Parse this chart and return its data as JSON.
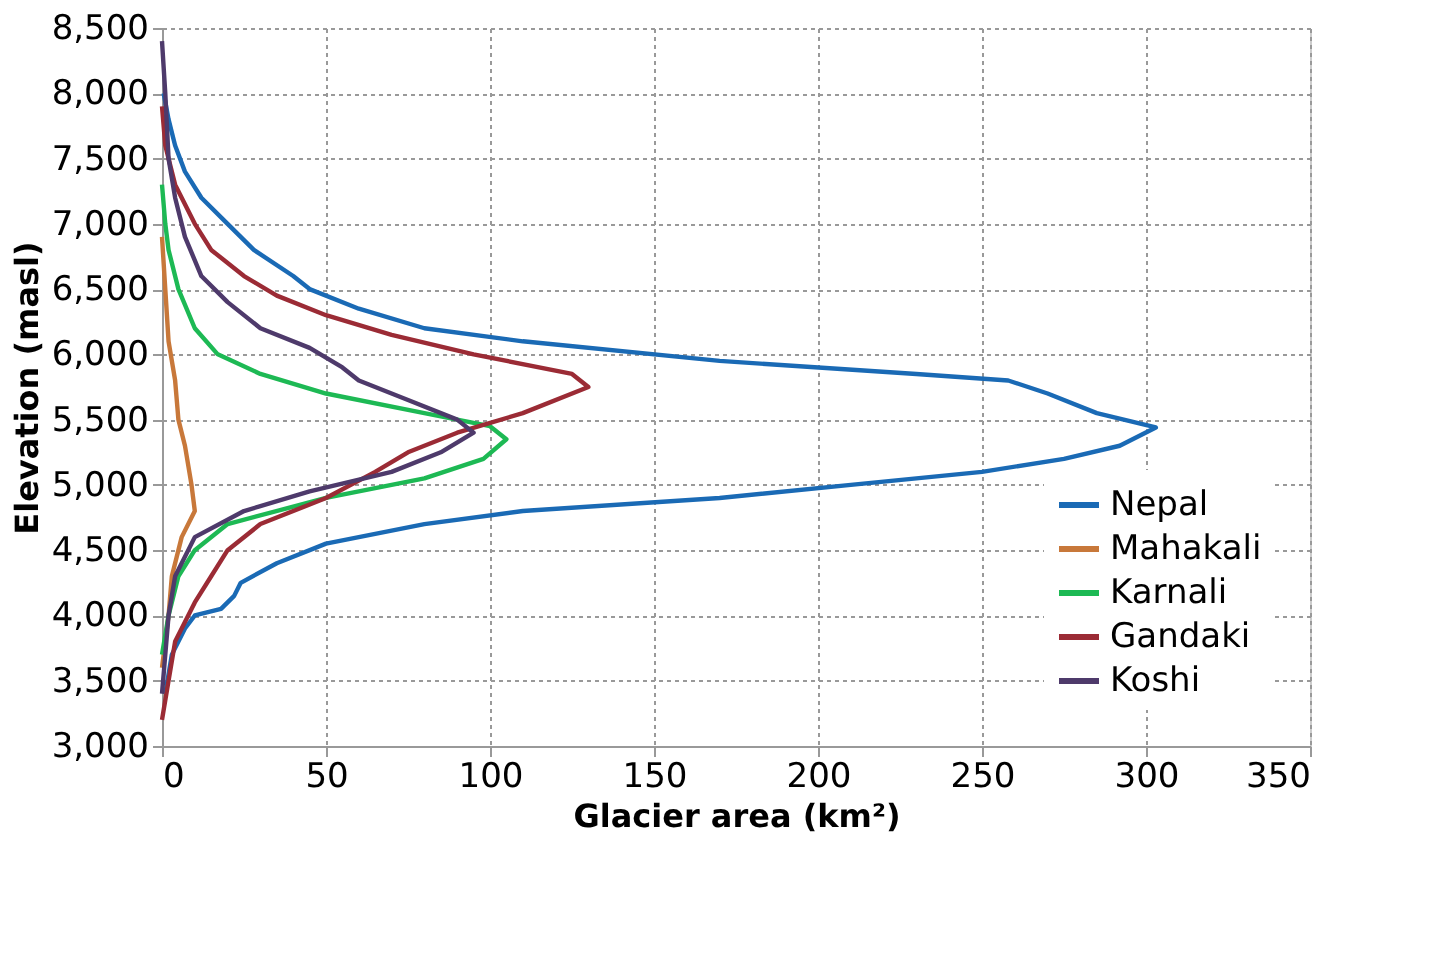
{
  "chart_data": {
    "type": "line",
    "xlabel": "Glacier area (km²)",
    "ylabel": "Elevation (masl)",
    "xlim": [
      0,
      350
    ],
    "xticks": [
      0,
      50,
      100,
      150,
      200,
      250,
      300,
      350
    ],
    "ylim": [
      3000,
      8500
    ],
    "yticks": [
      {
        "value": 3000,
        "label": "3,000"
      },
      {
        "value": 3500,
        "label": "3,500"
      },
      {
        "value": 4000,
        "label": "4,000"
      },
      {
        "value": 4500,
        "label": "4,500"
      },
      {
        "value": 5000,
        "label": "5,000"
      },
      {
        "value": 5500,
        "label": "5,500"
      },
      {
        "value": 6000,
        "label": "6,000"
      },
      {
        "value": 6500,
        "label": "6,500"
      },
      {
        "value": 7000,
        "label": "7,000"
      },
      {
        "value": 7500,
        "label": "7,500"
      },
      {
        "value": 8000,
        "label": "8,000"
      },
      {
        "value": 8500,
        "label": "8,500"
      }
    ],
    "grid": true,
    "legend": "bottom right",
    "marker": "none",
    "series": [
      {
        "name": "Nepal",
        "color": "#1a6ab5",
        "x": [
          1,
          3,
          7,
          10,
          18,
          22,
          24,
          35,
          50,
          80,
          110,
          170,
          210,
          250,
          275,
          292,
          303,
          285,
          270,
          258,
          230,
          170,
          110,
          80,
          60,
          45,
          40,
          28,
          20,
          12,
          7,
          4,
          2,
          0.5
        ],
        "values": [
          3400,
          3700,
          3900,
          4000,
          4050,
          4150,
          4250,
          4400,
          4550,
          4700,
          4800,
          4900,
          5000,
          5100,
          5200,
          5300,
          5440,
          5550,
          5700,
          5800,
          5850,
          5950,
          6100,
          6200,
          6350,
          6500,
          6600,
          6800,
          7000,
          7200,
          7400,
          7600,
          7800,
          8000
        ]
      },
      {
        "name": "Mahakali",
        "color": "#c8783a",
        "x": [
          0,
          2,
          3,
          6,
          10,
          9,
          7,
          5,
          4,
          2,
          1,
          0
        ],
        "values": [
          3600,
          4000,
          4300,
          4600,
          4800,
          5000,
          5300,
          5500,
          5800,
          6100,
          6500,
          6900
        ]
      },
      {
        "name": "Karnali",
        "color": "#1db954",
        "x": [
          0,
          2,
          5,
          10,
          20,
          50,
          80,
          98,
          105,
          100,
          80,
          50,
          30,
          17,
          10,
          5,
          2,
          1,
          0
        ],
        "values": [
          3700,
          4000,
          4300,
          4500,
          4700,
          4900,
          5050,
          5200,
          5350,
          5450,
          5550,
          5700,
          5850,
          6000,
          6200,
          6500,
          6800,
          7000,
          7300
        ]
      },
      {
        "name": "Gandaki",
        "color": "#9b2b35",
        "x": [
          0,
          2,
          4,
          8,
          10,
          15,
          20,
          30,
          50,
          65,
          75,
          90,
          110,
          130,
          125,
          95,
          70,
          50,
          35,
          25,
          15,
          10,
          4,
          1,
          0
        ],
        "values": [
          3200,
          3500,
          3800,
          4000,
          4100,
          4300,
          4500,
          4700,
          4900,
          5100,
          5250,
          5400,
          5550,
          5750,
          5850,
          6000,
          6150,
          6300,
          6450,
          6600,
          6800,
          7000,
          7300,
          7600,
          7900
        ]
      },
      {
        "name": "Koshi",
        "color": "#4e3a6b",
        "x": [
          0,
          1,
          2,
          4,
          10,
          25,
          45,
          70,
          85,
          95,
          90,
          75,
          60,
          55,
          45,
          30,
          20,
          12,
          7,
          4,
          2,
          1,
          0
        ],
        "values": [
          3400,
          3700,
          4000,
          4300,
          4600,
          4800,
          4950,
          5100,
          5250,
          5400,
          5500,
          5650,
          5800,
          5900,
          6050,
          6200,
          6400,
          6600,
          6900,
          7200,
          7500,
          8000,
          8400
        ]
      }
    ]
  }
}
